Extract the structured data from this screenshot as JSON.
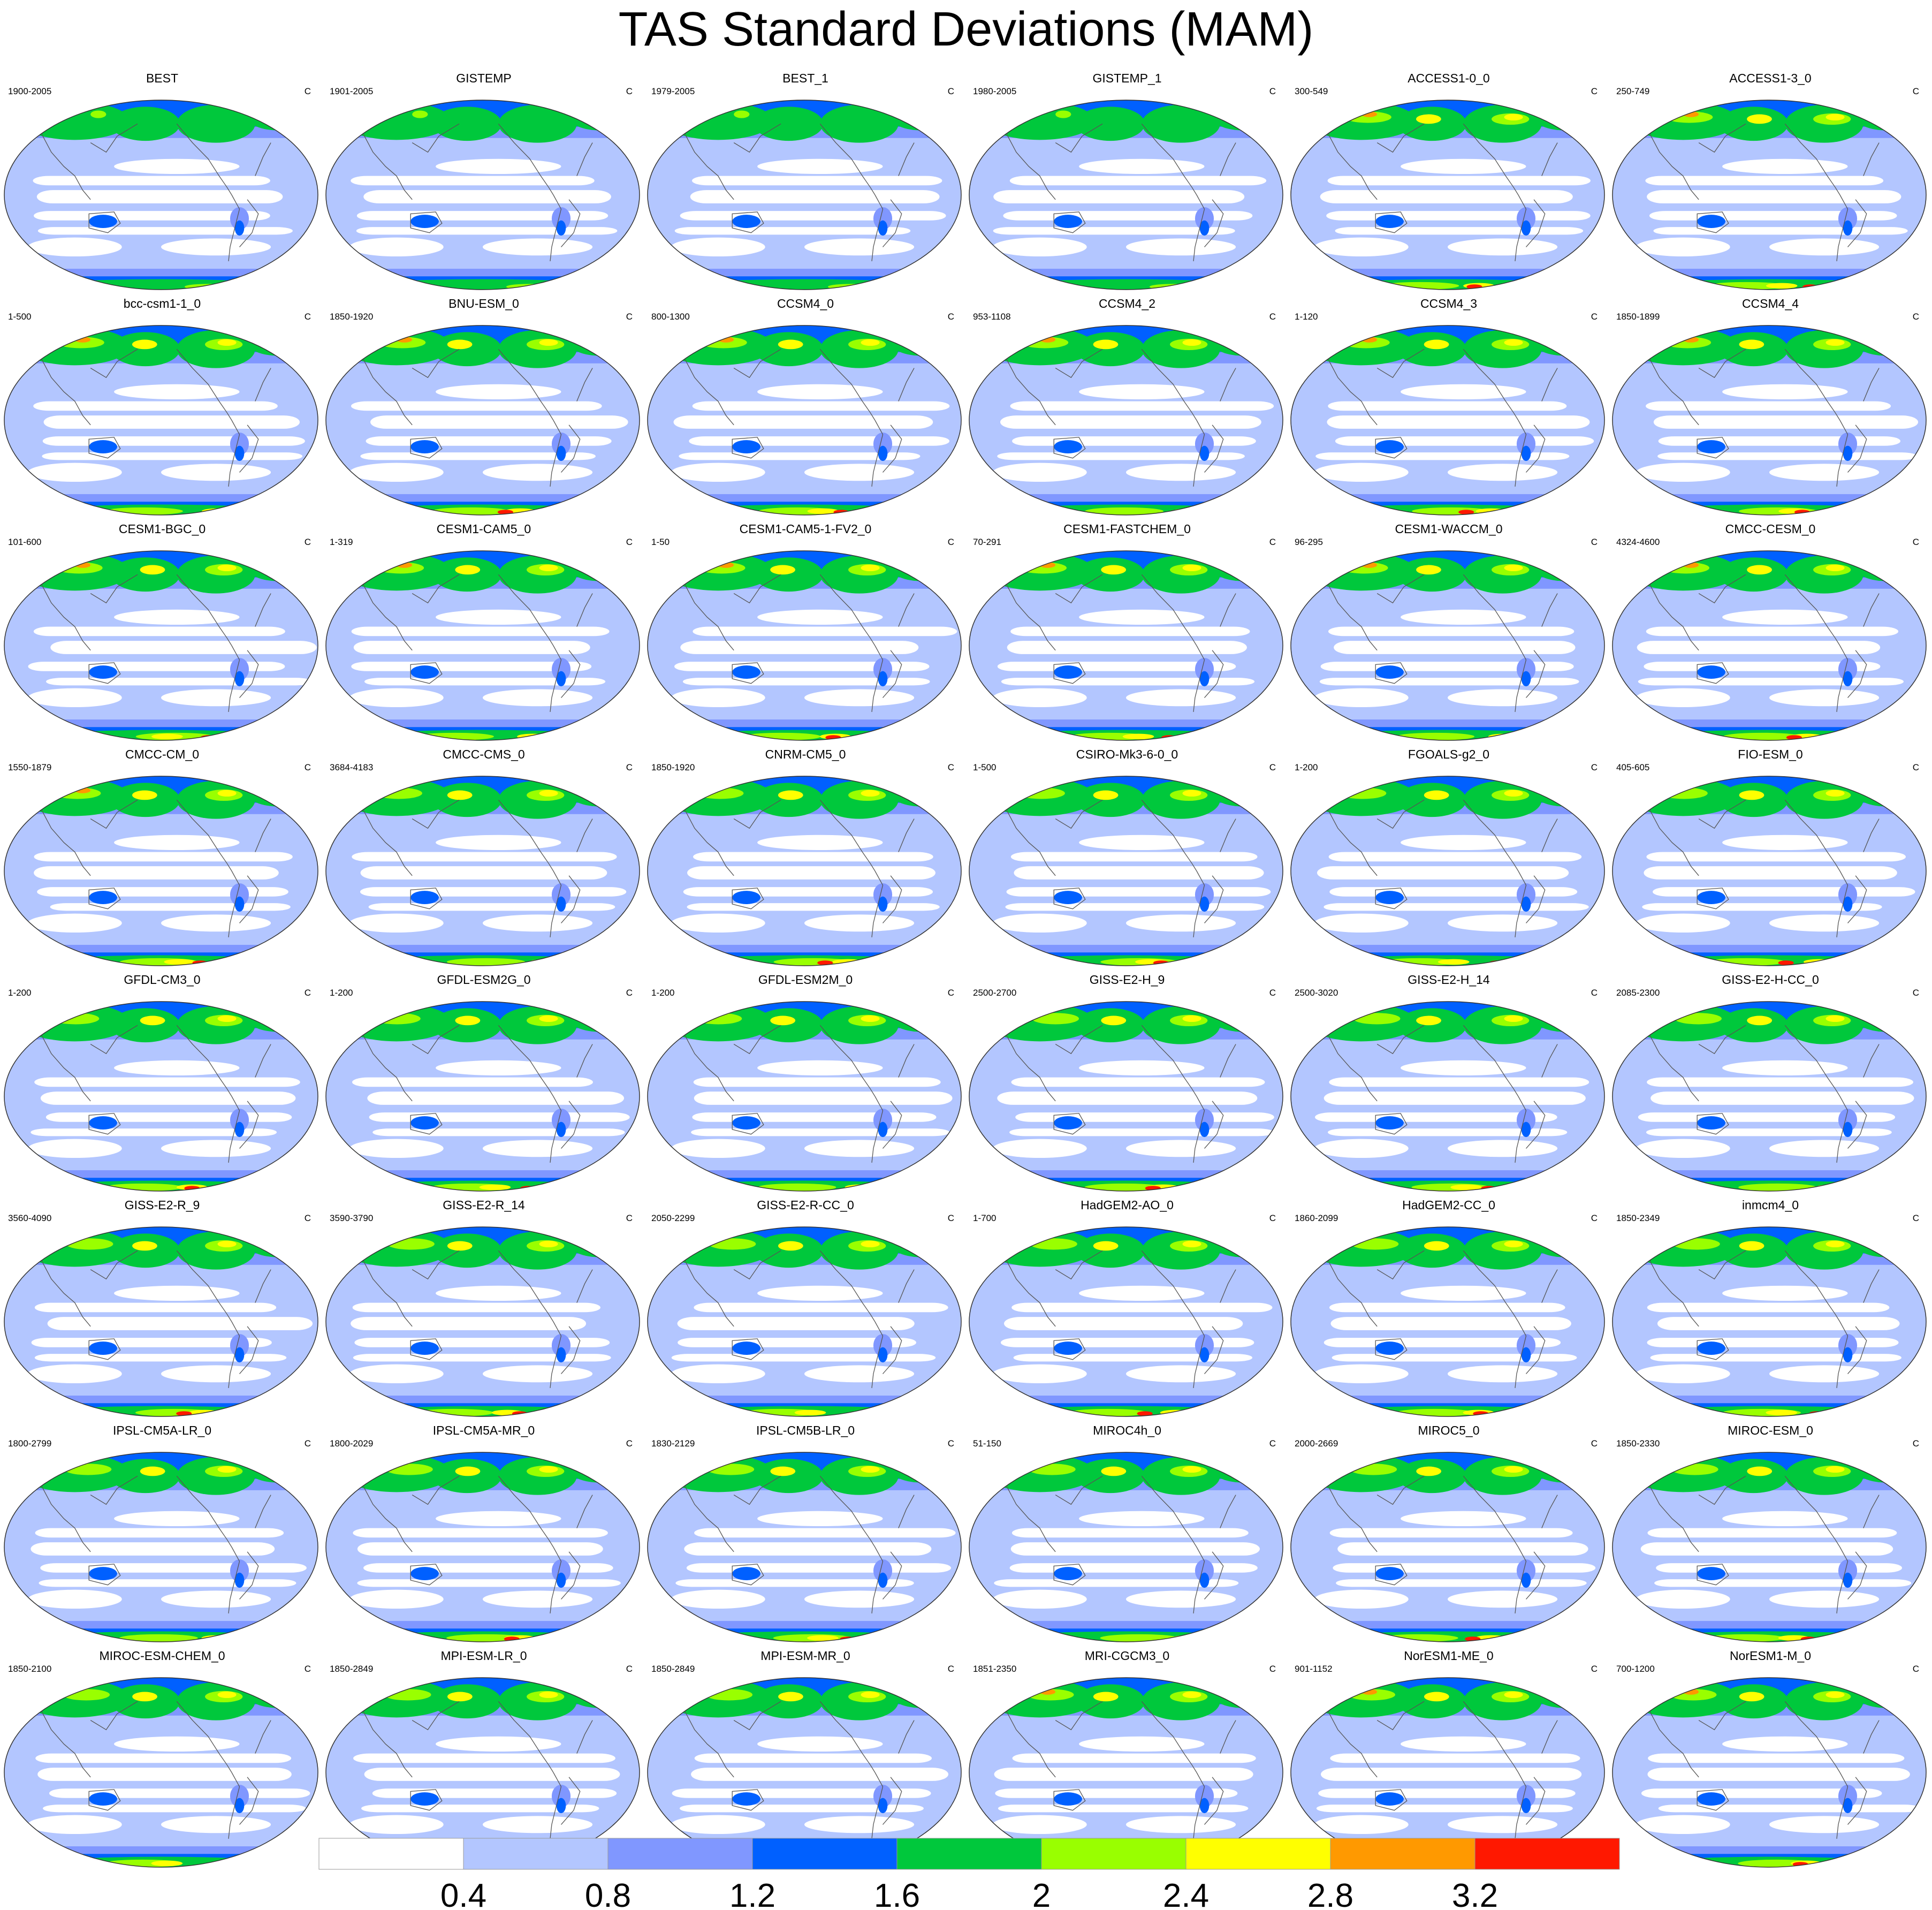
{
  "title": "TAS Standard Deviations (MAM)",
  "units": "C",
  "colors": {
    "levels": [
      "#ffffff",
      "#b3c6ff",
      "#8097ff",
      "#0060ff",
      "#00c83c",
      "#99ff00",
      "#ffff00",
      "#ff9900",
      "#ff1800"
    ],
    "coast": "#555555",
    "border": "#333333"
  },
  "panels": [
    {
      "name": "BEST",
      "years": "1900-2005"
    },
    {
      "name": "GISTEMP",
      "years": "1901-2005"
    },
    {
      "name": "BEST_1",
      "years": "1979-2005"
    },
    {
      "name": "GISTEMP_1",
      "years": "1980-2005"
    },
    {
      "name": "ACCESS1-0_0",
      "years": "300-549"
    },
    {
      "name": "ACCESS1-3_0",
      "years": "250-749"
    },
    {
      "name": "bcc-csm1-1_0",
      "years": "1-500"
    },
    {
      "name": "BNU-ESM_0",
      "years": "1850-1920"
    },
    {
      "name": "CCSM4_0",
      "years": "800-1300"
    },
    {
      "name": "CCSM4_2",
      "years": "953-1108"
    },
    {
      "name": "CCSM4_3",
      "years": "1-120"
    },
    {
      "name": "CCSM4_4",
      "years": "1850-1899"
    },
    {
      "name": "CESM1-BGC_0",
      "years": "101-600"
    },
    {
      "name": "CESM1-CAM5_0",
      "years": "1-319"
    },
    {
      "name": "CESM1-CAM5-1-FV2_0",
      "years": "1-50"
    },
    {
      "name": "CESM1-FASTCHEM_0",
      "years": "70-291"
    },
    {
      "name": "CESM1-WACCM_0",
      "years": "96-295"
    },
    {
      "name": "CMCC-CESM_0",
      "years": "4324-4600"
    },
    {
      "name": "CMCC-CM_0",
      "years": "1550-1879"
    },
    {
      "name": "CMCC-CMS_0",
      "years": "3684-4183"
    },
    {
      "name": "CNRM-CM5_0",
      "years": "1850-1920"
    },
    {
      "name": "CSIRO-Mk3-6-0_0",
      "years": "1-500"
    },
    {
      "name": "FGOALS-g2_0",
      "years": "1-200"
    },
    {
      "name": "FIO-ESM_0",
      "years": "405-605"
    },
    {
      "name": "GFDL-CM3_0",
      "years": "1-200"
    },
    {
      "name": "GFDL-ESM2G_0",
      "years": "1-200"
    },
    {
      "name": "GFDL-ESM2M_0",
      "years": "1-200"
    },
    {
      "name": "GISS-E2-H_9",
      "years": "2500-2700"
    },
    {
      "name": "GISS-E2-H_14",
      "years": "2500-3020"
    },
    {
      "name": "GISS-E2-H-CC_0",
      "years": "2085-2300"
    },
    {
      "name": "GISS-E2-R_9",
      "years": "3560-4090"
    },
    {
      "name": "GISS-E2-R_14",
      "years": "3590-3790"
    },
    {
      "name": "GISS-E2-R-CC_0",
      "years": "2050-2299"
    },
    {
      "name": "HadGEM2-AO_0",
      "years": "1-700"
    },
    {
      "name": "HadGEM2-CC_0",
      "years": "1860-2099"
    },
    {
      "name": "inmcm4_0",
      "years": "1850-2349"
    },
    {
      "name": "IPSL-CM5A-LR_0",
      "years": "1800-2799"
    },
    {
      "name": "IPSL-CM5A-MR_0",
      "years": "1800-2029"
    },
    {
      "name": "IPSL-CM5B-LR_0",
      "years": "1830-2129"
    },
    {
      "name": "MIROC4h_0",
      "years": "51-150"
    },
    {
      "name": "MIROC5_0",
      "years": "2000-2669"
    },
    {
      "name": "MIROC-ESM_0",
      "years": "1850-2330"
    },
    {
      "name": "MIROC-ESM-CHEM_0",
      "years": "1850-2100"
    },
    {
      "name": "MPI-ESM-LR_0",
      "years": "1850-2849"
    },
    {
      "name": "MPI-ESM-MR_0",
      "years": "1850-2849"
    },
    {
      "name": "MRI-CGCM3_0",
      "years": "1851-2350"
    },
    {
      "name": "NorESM1-ME_0",
      "years": "901-1152"
    },
    {
      "name": "NorESM1-M_0",
      "years": "700-1200"
    }
  ],
  "chart_data": {
    "type": "heatmap",
    "title": "TAS Standard Deviations (MAM)",
    "units": "C",
    "projection": "Robinson (global, Pacific-centred)",
    "panel_count": 48,
    "colorbar": {
      "levels": [
        0.4,
        0.8,
        1.2,
        1.6,
        2,
        2.4,
        2.8,
        3.2
      ],
      "tick_labels": [
        "0.4",
        "0.8",
        "1.2",
        "1.6",
        "2",
        "2.4",
        "2.8",
        "3.2"
      ],
      "colors": [
        "#ffffff",
        "#b3c6ff",
        "#8097ff",
        "#0060ff",
        "#00c83c",
        "#99ff00",
        "#ffff00",
        "#ff9900",
        "#ff1800"
      ]
    }
  }
}
